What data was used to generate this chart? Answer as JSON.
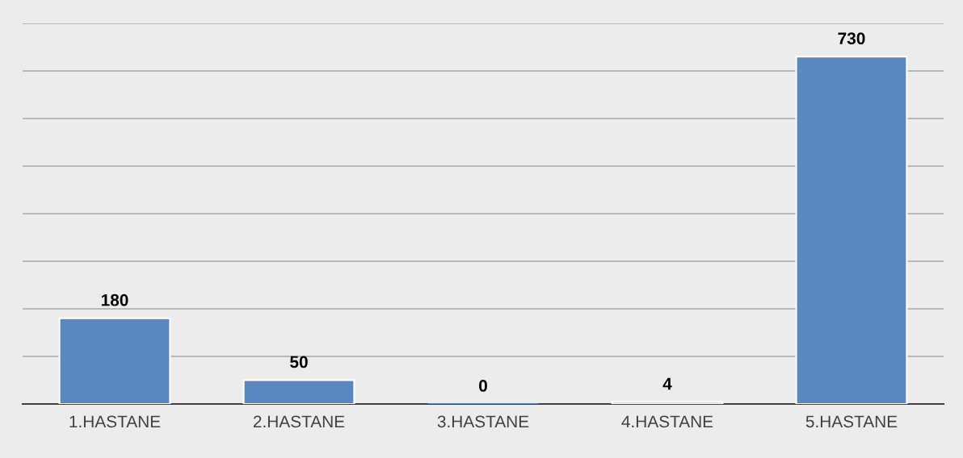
{
  "chart_data": {
    "type": "bar",
    "categories": [
      "1.HASTANE",
      "2.HASTANE",
      "3.HASTANE",
      "4.HASTANE",
      "5.HASTANE"
    ],
    "values": [
      180,
      50,
      0,
      4,
      730
    ],
    "color": "#5b87c0",
    "ylim": [
      0,
      800
    ],
    "yticks": [
      {
        "value": 0,
        "label": null
      },
      {
        "value": 100,
        "label": null
      },
      {
        "value": 200,
        "label": null
      },
      {
        "value": 300,
        "label": null
      },
      {
        "value": 400,
        "label": null
      },
      {
        "value": 500,
        "label": null
      },
      {
        "value": 600,
        "label": null
      },
      {
        "value": 700,
        "label": null
      },
      {
        "value": 800,
        "label": null
      }
    ],
    "tick_labels": "x",
    "grid": "y",
    "data_labels": true
  }
}
